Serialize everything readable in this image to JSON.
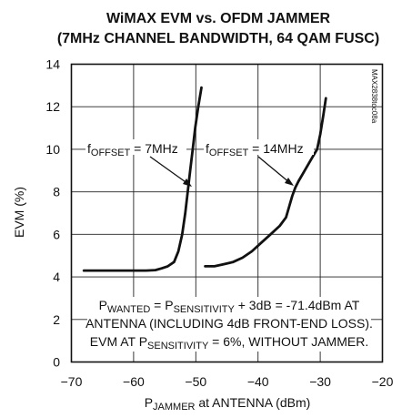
{
  "chart_data": {
    "type": "line",
    "title": "WiMAX EVM vs. OFDM JAMMER",
    "subtitle": "(7MHz CHANNEL BANDWIDTH, 64 QAM FUSC)",
    "xlabel": {
      "main": "P",
      "sub": "JAMMER",
      "rest": " at ANTENNA (dBm)"
    },
    "ylabel": "EVM (%)",
    "xlim": [
      -70,
      -20
    ],
    "ylim": [
      0,
      14
    ],
    "xticks": [
      "-70",
      "-60",
      "-50",
      "-40",
      "-30",
      "-20"
    ],
    "yticks": [
      "0",
      "2",
      "4",
      "6",
      "8",
      "10",
      "12",
      "14"
    ],
    "grid": true,
    "side_label": "MAX2838toc08a",
    "series": [
      {
        "x": [
          -68,
          -66,
          -64,
          -62,
          -60,
          -58,
          -56.5,
          -55.5,
          -54.5,
          -53.5,
          -52.8,
          -52.2,
          -51.7,
          -51.3,
          -50.9,
          -50.5,
          -50.1,
          -49.6,
          -49.1
        ],
        "y": [
          4.3,
          4.3,
          4.3,
          4.3,
          4.3,
          4.3,
          4.32,
          4.4,
          4.5,
          4.7,
          5.2,
          6.0,
          7.0,
          8.0,
          9.0,
          10.0,
          11.0,
          12.0,
          12.9
        ]
      },
      {
        "x": [
          -48.5,
          -47,
          -45.5,
          -44,
          -42.5,
          -41,
          -39.5,
          -38,
          -36.5,
          -35.5,
          -35,
          -34.5,
          -34,
          -33.5,
          -32.5,
          -31.5,
          -30.5,
          -30,
          -29.5,
          -29.1
        ],
        "y": [
          4.5,
          4.5,
          4.6,
          4.7,
          4.9,
          5.2,
          5.6,
          6.0,
          6.4,
          6.8,
          7.3,
          7.8,
          8.2,
          8.5,
          9.0,
          9.5,
          10.0,
          10.7,
          11.6,
          12.4
        ]
      }
    ],
    "annotations": [
      {
        "pre": "f",
        "sub": "OFFSET",
        "post": " = 7MHz",
        "arrow_to": {
          "x": -51.2,
          "y": 8.2
        }
      },
      {
        "pre": "f",
        "sub": "OFFSET",
        "post": " = 14MHz",
        "arrow_to": {
          "x": -34.3,
          "y": 8.0
        }
      }
    ],
    "note": {
      "line1": {
        "a": "P",
        "a_sub": "WANTED",
        "b": " = P",
        "b_sub": "SENSITIVITY",
        "c": " + 3dB = -71.4dBm AT"
      },
      "line2": "ANTENNA (INCLUDING 4dB FRONT-END LOSS).",
      "line3": {
        "a": "EVM AT P",
        "a_sub": "SENSITIVITY",
        "b": " = 6%, WITHOUT JAMMER."
      }
    }
  }
}
